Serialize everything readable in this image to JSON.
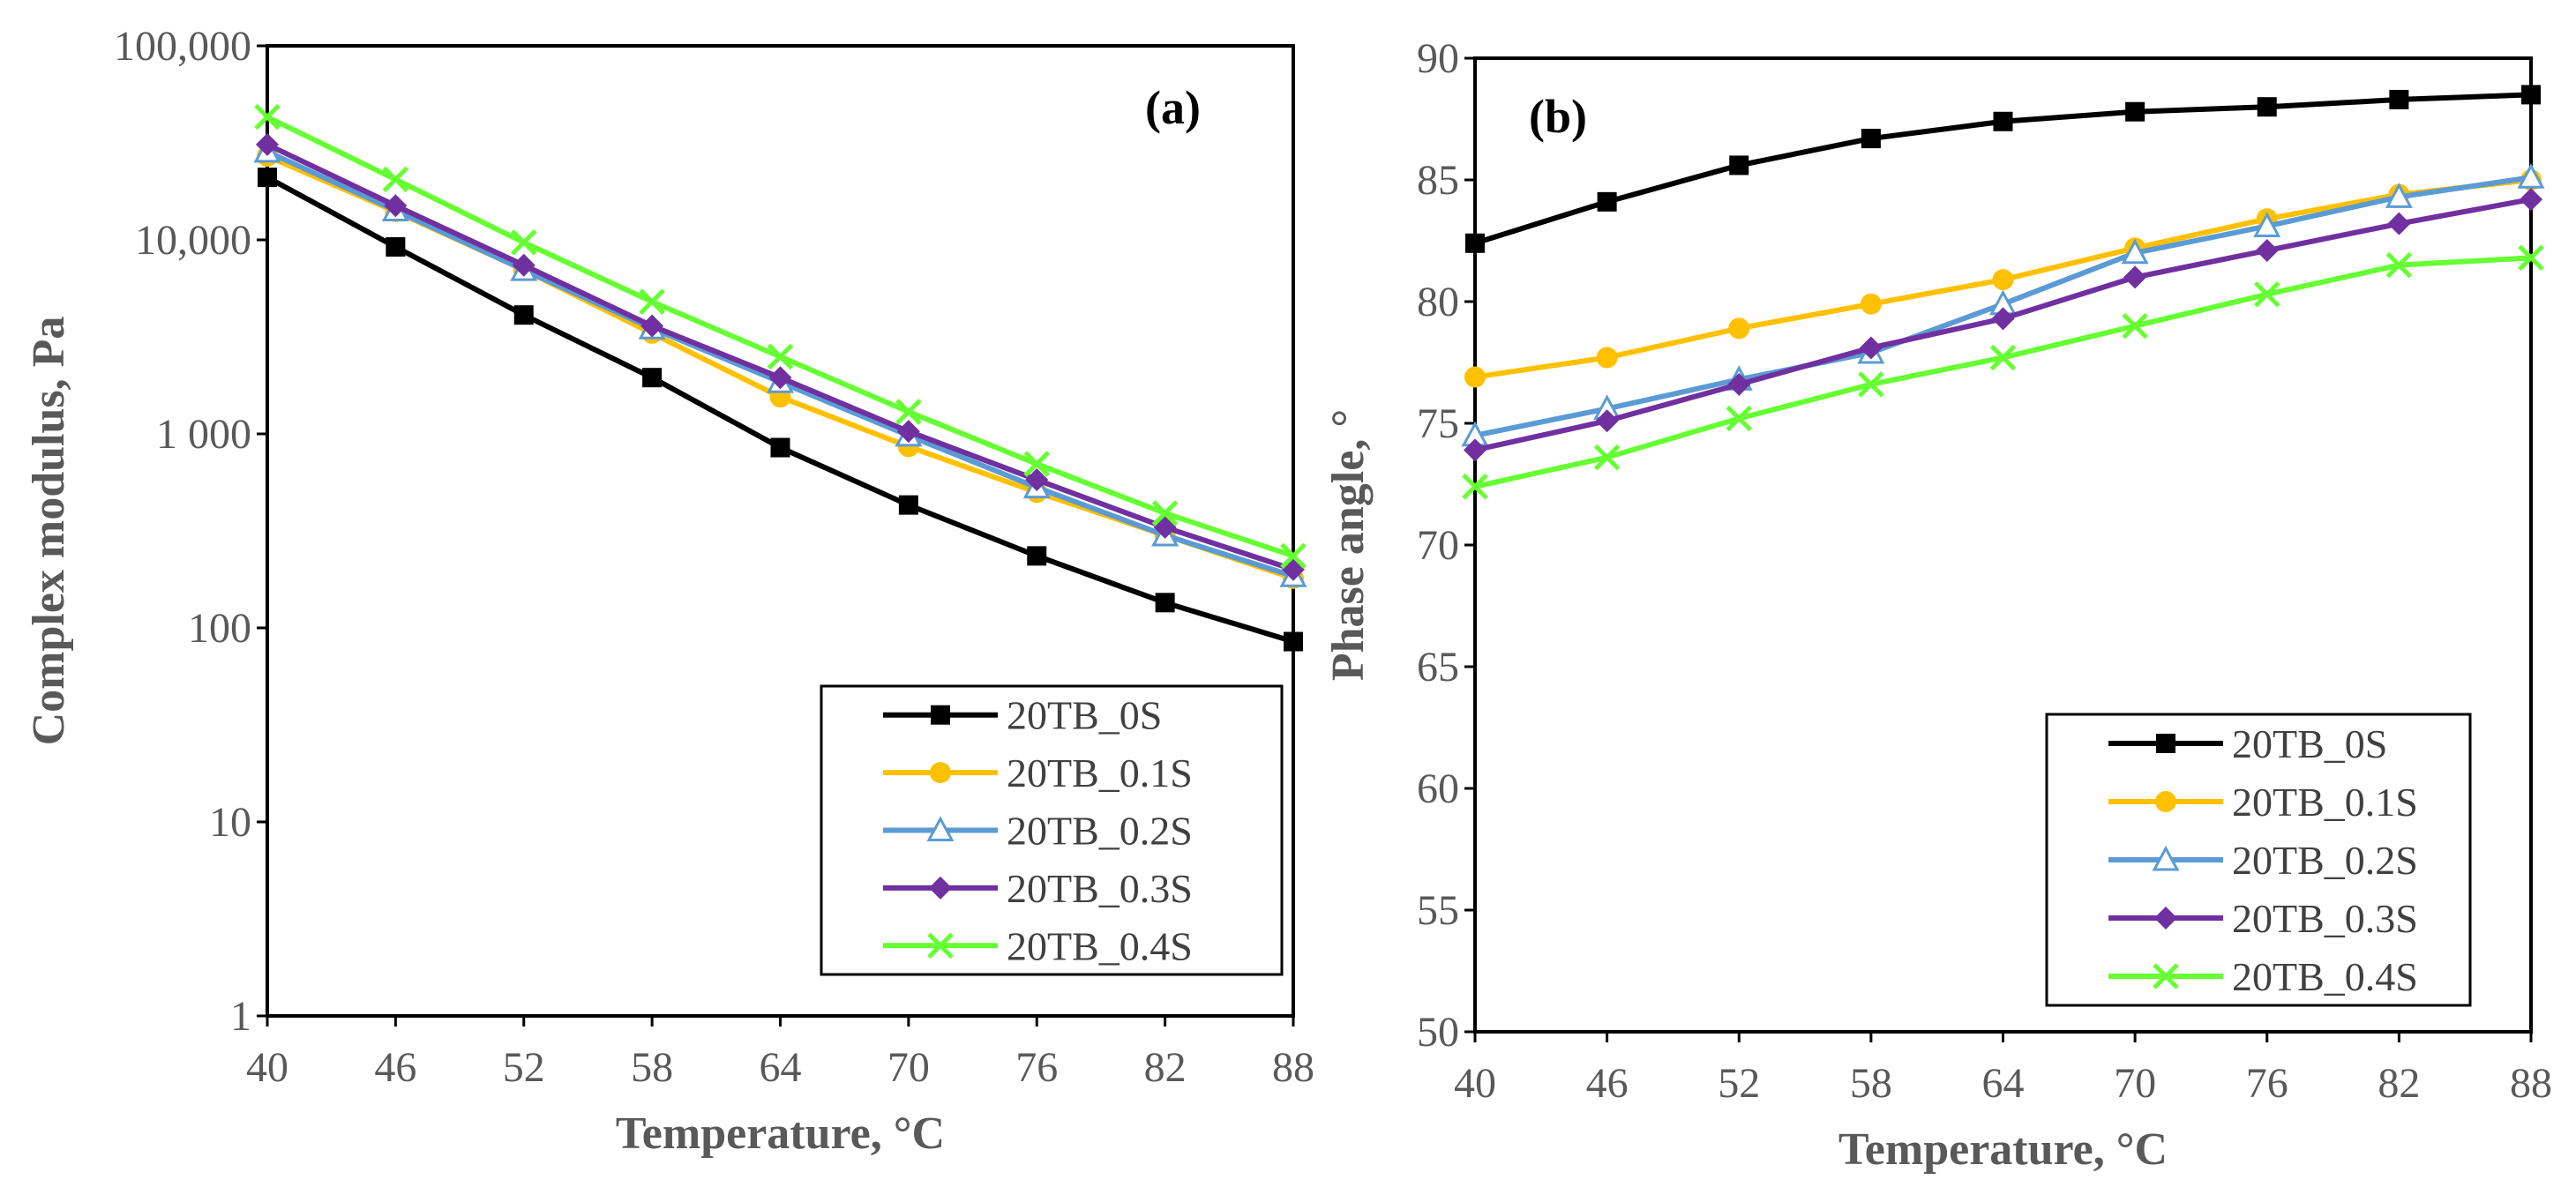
{
  "chart_data": [
    {
      "type": "line",
      "panel_label": "(a)",
      "xlabel": "Temperature, °C",
      "ylabel": "Complex modulus, Pa",
      "yscale": "log",
      "ylim": [
        1,
        100000
      ],
      "xlim": [
        40,
        88
      ],
      "x": [
        40,
        46,
        52,
        58,
        64,
        70,
        76,
        82,
        88
      ],
      "xtick_labels": [
        "40",
        "46",
        "52",
        "58",
        "64",
        "70",
        "76",
        "82",
        "88"
      ],
      "ytick_labels": [
        "1",
        "10",
        "100",
        "1 000",
        "10,000",
        "100,000"
      ],
      "legend_position": "bottom-right",
      "series": [
        {
          "name": "20TB_0S",
          "color": "#000000",
          "marker": "square",
          "values": [
            21000,
            9200,
            4100,
            1950,
            850,
            430,
            235,
            135,
            85
          ]
        },
        {
          "name": "20TB_0.1S",
          "color": "#FFC000",
          "marker": "circle",
          "values": [
            27000,
            14000,
            7000,
            3300,
            1550,
            860,
            500,
            300,
            180
          ]
        },
        {
          "name": "20TB_0.2S",
          "color": "#5B9BD5",
          "marker": "triangle",
          "values": [
            28500,
            14200,
            7000,
            3500,
            1850,
            980,
            530,
            300,
            185
          ]
        },
        {
          "name": "20TB_0.3S",
          "color": "#7030A0",
          "marker": "diamond",
          "values": [
            31000,
            15000,
            7400,
            3600,
            1950,
            1030,
            580,
            330,
            200
          ]
        },
        {
          "name": "20TB_0.4S",
          "color": "#66FF33",
          "marker": "x",
          "values": [
            43000,
            20500,
            9700,
            4800,
            2500,
            1300,
            700,
            390,
            235
          ]
        }
      ]
    },
    {
      "type": "line",
      "panel_label": "(b)",
      "xlabel": "Temperature, °C",
      "ylabel": "Phase angle, °",
      "yscale": "linear",
      "ylim": [
        50,
        90
      ],
      "xlim": [
        40,
        88
      ],
      "x": [
        40,
        46,
        52,
        58,
        64,
        70,
        76,
        82,
        88
      ],
      "xtick_labels": [
        "40",
        "46",
        "52",
        "58",
        "64",
        "70",
        "76",
        "82",
        "88"
      ],
      "ytick_labels": [
        "50",
        "55",
        "60",
        "65",
        "70",
        "75",
        "80",
        "85",
        "90"
      ],
      "legend_position": "bottom-right",
      "series": [
        {
          "name": "20TB_0S",
          "color": "#000000",
          "marker": "square",
          "values": [
            82.4,
            84.1,
            85.6,
            86.7,
            87.4,
            87.8,
            88.0,
            88.3,
            88.5
          ]
        },
        {
          "name": "20TB_0.1S",
          "color": "#FFC000",
          "marker": "circle",
          "values": [
            76.9,
            77.7,
            78.9,
            79.9,
            80.9,
            82.2,
            83.4,
            84.4,
            85.0
          ]
        },
        {
          "name": "20TB_0.2S",
          "color": "#5B9BD5",
          "marker": "triangle",
          "values": [
            74.5,
            75.6,
            76.8,
            77.9,
            79.9,
            82.0,
            83.1,
            84.3,
            85.1
          ]
        },
        {
          "name": "20TB_0.3S",
          "color": "#7030A0",
          "marker": "diamond",
          "values": [
            73.9,
            75.1,
            76.6,
            78.1,
            79.3,
            81.0,
            82.1,
            83.2,
            84.2
          ]
        },
        {
          "name": "20TB_0.4S",
          "color": "#66FF33",
          "marker": "x",
          "values": [
            72.4,
            73.6,
            75.2,
            76.6,
            77.7,
            79.0,
            80.3,
            81.5,
            81.8
          ]
        }
      ]
    }
  ]
}
